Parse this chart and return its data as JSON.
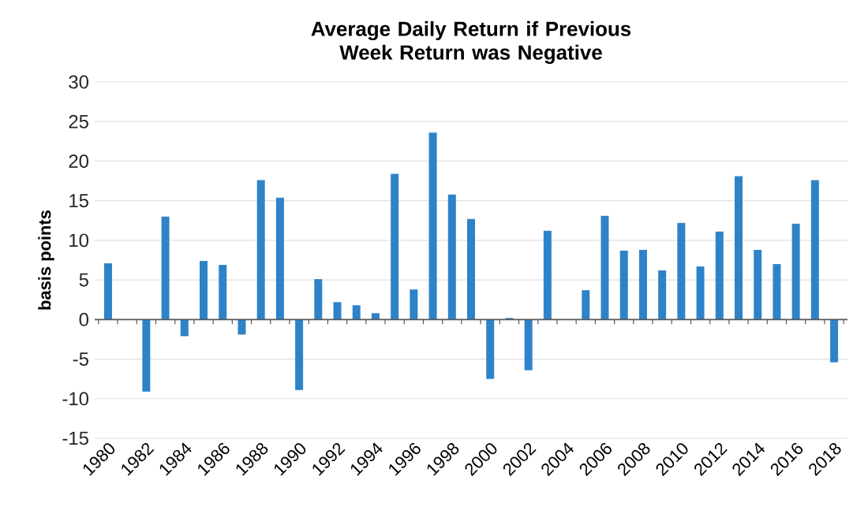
{
  "chart_data": {
    "type": "bar",
    "title": "Average Daily Return if Previous Week Return was Negative",
    "ylabel": "basis points",
    "categories": [
      "1980",
      null,
      "1982",
      null,
      "1984",
      null,
      "1986",
      null,
      "1988",
      null,
      "1990",
      null,
      "1992",
      null,
      "1994",
      null,
      "1996",
      null,
      "1998",
      null,
      "2000",
      null,
      "2002",
      null,
      "2004",
      null,
      "2006",
      null,
      "2008",
      null,
      "2010",
      null,
      "2012",
      null,
      "2014",
      null,
      "2016",
      null,
      "2018"
    ],
    "values": [
      7.1,
      null,
      -9.1,
      13,
      -2.1,
      7.4,
      6.9,
      -1.9,
      17.6,
      15.4,
      -8.9,
      5.1,
      2.2,
      1.8,
      0.8,
      18.4,
      3.8,
      23.6,
      15.8,
      12.7,
      -7.5,
      0.2,
      -6.4,
      11.2,
      null,
      3.7,
      13.1,
      8.7,
      8.8,
      6.2,
      12.2,
      6.7,
      11.1,
      18.1,
      8.8,
      7.0,
      12.1,
      17.6,
      -5.4
    ],
    "color": "#2e83c8",
    "ylim": [
      -15,
      30
    ],
    "yticks": [
      -15,
      -10,
      -5,
      0,
      5,
      10,
      15,
      20,
      25,
      30
    ],
    "grid": "y"
  }
}
